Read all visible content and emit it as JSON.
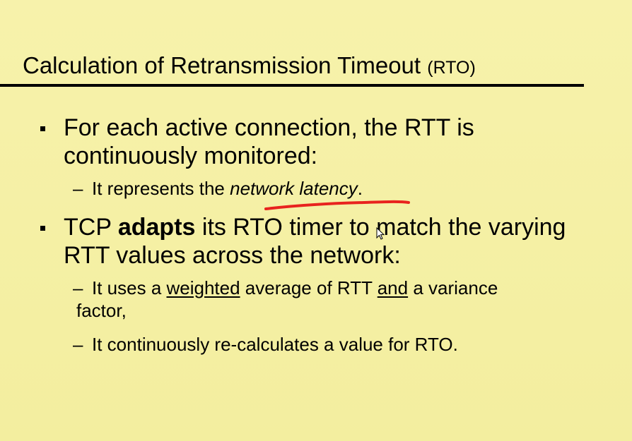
{
  "title": {
    "main": "Calculation of Retransmission Timeout",
    "abbr": "(RTO)"
  },
  "bullets": [
    {
      "line1": "For each active connection, the RTT is",
      "line2": "continuously monitored:",
      "subs": [
        {
          "prefix": "It represents the ",
          "emph": "network latency",
          "suffix": "."
        }
      ]
    },
    {
      "pre": "TCP ",
      "bold": "adapts",
      "post": " its RTO timer to match the varying",
      "line2": "RTT values across the network:",
      "subs": [
        {
          "p1": "It uses a ",
          "u1": "weighted",
          "p2": " average of RTT ",
          "u2": "and",
          "p3": " a variance",
          "line2": "factor,"
        },
        {
          "text": "It continuously re-calculates a value for RTO."
        }
      ]
    }
  ],
  "dash_symbol": "–",
  "annotation_color": "#e8231e"
}
